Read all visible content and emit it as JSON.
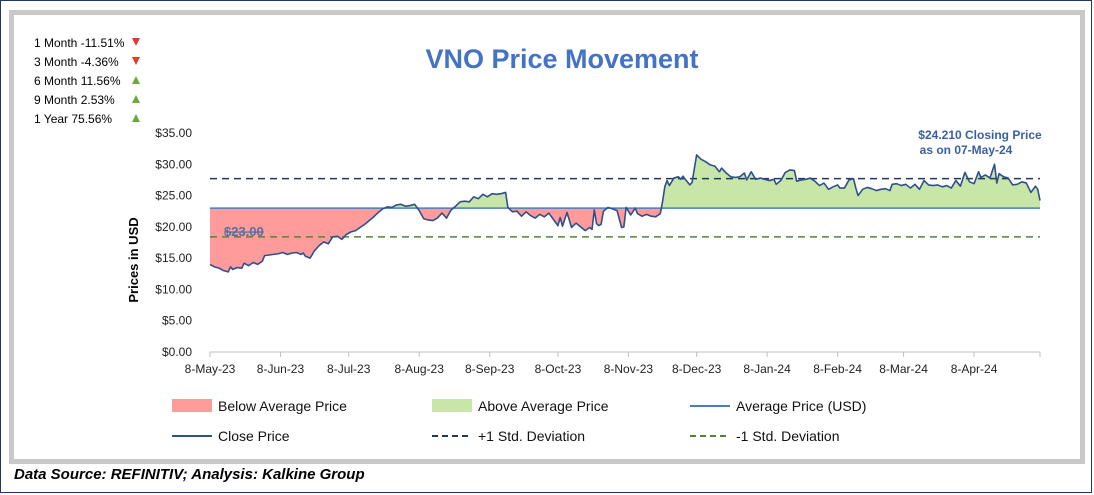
{
  "chart_data": {
    "type": "line",
    "title": "VNO Price Movement",
    "ylabel": "Prices in USD",
    "xlabel": "",
    "ylim": [
      0,
      35
    ],
    "yticks": [
      "$0.00",
      "$5.00",
      "$10.00",
      "$15.00",
      "$20.00",
      "$25.00",
      "$30.00",
      "$35.00"
    ],
    "ytick_values": [
      0,
      5,
      10,
      15,
      20,
      25,
      30,
      35
    ],
    "xticks": [
      "8-May-23",
      "8-Jun-23",
      "8-Jul-23",
      "8-Aug-23",
      "8-Sep-23",
      "8-Oct-23",
      "8-Nov-23",
      "8-Dec-23",
      "8-Jan-24",
      "8-Feb-24",
      "8-Mar-24",
      "8-Apr-24"
    ],
    "xtick_days": [
      0,
      31,
      61,
      92,
      123,
      153,
      184,
      214,
      245,
      276,
      305,
      336
    ],
    "x_range_days": [
      0,
      365
    ],
    "average_price": 23.0,
    "average_label": "$23.00",
    "plus_1_std": 27.7,
    "minus_1_std": 18.4,
    "close_annotation": [
      "$24.210 Closing Price",
      "as on 07-May-24"
    ],
    "series": [
      {
        "name": "Close Price",
        "points": [
          [
            0,
            14.0
          ],
          [
            2,
            13.6
          ],
          [
            4,
            13.4
          ],
          [
            6,
            13.0
          ],
          [
            8,
            12.8
          ],
          [
            9,
            13.6
          ],
          [
            10,
            13.2
          ],
          [
            12,
            13.5
          ],
          [
            14,
            13.4
          ],
          [
            15,
            14.2
          ],
          [
            17,
            13.8
          ],
          [
            19,
            14.3
          ],
          [
            21,
            14.0
          ],
          [
            23,
            14.5
          ],
          [
            24,
            15.4
          ],
          [
            26,
            15.5
          ],
          [
            28,
            15.6
          ],
          [
            30,
            15.7
          ],
          [
            32,
            15.9
          ],
          [
            34,
            15.6
          ],
          [
            36,
            15.8
          ],
          [
            38,
            15.9
          ],
          [
            40,
            15.6
          ],
          [
            41,
            15.8
          ],
          [
            42,
            15.3
          ],
          [
            44,
            15.0
          ],
          [
            46,
            16.2
          ],
          [
            48,
            17.0
          ],
          [
            50,
            17.6
          ],
          [
            52,
            17.3
          ],
          [
            54,
            18.4
          ],
          [
            56,
            18.5
          ],
          [
            58,
            18.0
          ],
          [
            60,
            18.8
          ],
          [
            62,
            19.2
          ],
          [
            64,
            19.4
          ],
          [
            66,
            19.9
          ],
          [
            68,
            20.4
          ],
          [
            70,
            21.0
          ],
          [
            72,
            21.6
          ],
          [
            74,
            22.3
          ],
          [
            76,
            22.9
          ],
          [
            78,
            23.2
          ],
          [
            80,
            23.1
          ],
          [
            82,
            23.5
          ],
          [
            84,
            23.6
          ],
          [
            86,
            23.3
          ],
          [
            88,
            23.4
          ],
          [
            90,
            23.6
          ],
          [
            92,
            22.6
          ],
          [
            94,
            21.3
          ],
          [
            96,
            21.1
          ],
          [
            98,
            21.0
          ],
          [
            100,
            21.4
          ],
          [
            102,
            22.2
          ],
          [
            104,
            21.4
          ],
          [
            106,
            22.7
          ],
          [
            108,
            23.3
          ],
          [
            110,
            24.0
          ],
          [
            112,
            24.1
          ],
          [
            114,
            24.0
          ],
          [
            116,
            24.8
          ],
          [
            118,
            24.5
          ],
          [
            120,
            25.2
          ],
          [
            122,
            24.8
          ],
          [
            124,
            25.3
          ],
          [
            126,
            25.2
          ],
          [
            128,
            25.3
          ],
          [
            129,
            25.4
          ],
          [
            130,
            25.5
          ],
          [
            131,
            23.1
          ],
          [
            133,
            22.4
          ],
          [
            135,
            22.5
          ],
          [
            137,
            21.7
          ],
          [
            139,
            22.4
          ],
          [
            141,
            21.8
          ],
          [
            143,
            21.4
          ],
          [
            145,
            22.0
          ],
          [
            147,
            21.6
          ],
          [
            149,
            22.2
          ],
          [
            151,
            21.2
          ],
          [
            153,
            20.2
          ],
          [
            154,
            21.5
          ],
          [
            155,
            20.1
          ],
          [
            157,
            22.3
          ],
          [
            159,
            19.9
          ],
          [
            161,
            20.6
          ],
          [
            163,
            20.0
          ],
          [
            165,
            19.4
          ],
          [
            167,
            19.9
          ],
          [
            168,
            19.6
          ],
          [
            169,
            22.7
          ],
          [
            170,
            20.5
          ],
          [
            171,
            20.2
          ],
          [
            172,
            20.4
          ],
          [
            173,
            22.5
          ],
          [
            175,
            23.1
          ],
          [
            177,
            22.9
          ],
          [
            179,
            22.6
          ],
          [
            181,
            19.9
          ],
          [
            182,
            20.0
          ],
          [
            183,
            23.1
          ],
          [
            185,
            21.9
          ],
          [
            187,
            23.0
          ],
          [
            188,
            22.1
          ],
          [
            190,
            21.7
          ],
          [
            192,
            22.0
          ],
          [
            194,
            21.7
          ],
          [
            196,
            21.6
          ],
          [
            198,
            22.1
          ],
          [
            199,
            24.0
          ],
          [
            200,
            26.4
          ],
          [
            201,
            27.4
          ],
          [
            202,
            26.6
          ],
          [
            204,
            27.8
          ],
          [
            206,
            28.0
          ],
          [
            207,
            27.6
          ],
          [
            208,
            28.1
          ],
          [
            209,
            27.6
          ],
          [
            211,
            26.7
          ],
          [
            212,
            27.1
          ],
          [
            214,
            31.5
          ],
          [
            216,
            30.8
          ],
          [
            218,
            30.4
          ],
          [
            220,
            29.9
          ],
          [
            222,
            29.7
          ],
          [
            224,
            28.8
          ],
          [
            225,
            29.4
          ],
          [
            227,
            28.6
          ],
          [
            229,
            28.0
          ],
          [
            231,
            27.9
          ],
          [
            233,
            28.0
          ],
          [
            235,
            28.6
          ],
          [
            236,
            27.5
          ],
          [
            238,
            28.8
          ],
          [
            240,
            27.6
          ],
          [
            242,
            27.8
          ],
          [
            244,
            27.6
          ],
          [
            246,
            27.4
          ],
          [
            248,
            27.6
          ],
          [
            249,
            26.8
          ],
          [
            251,
            27.4
          ],
          [
            253,
            28.7
          ],
          [
            255,
            29.1
          ],
          [
            257,
            29.0
          ],
          [
            258,
            27.3
          ],
          [
            260,
            27.5
          ],
          [
            262,
            27.6
          ],
          [
            264,
            27.8
          ],
          [
            266,
            27.3
          ],
          [
            268,
            26.6
          ],
          [
            270,
            27.0
          ],
          [
            272,
            26.0
          ],
          [
            274,
            26.4
          ],
          [
            276,
            26.7
          ],
          [
            277,
            26.2
          ],
          [
            279,
            26.2
          ],
          [
            281,
            27.5
          ],
          [
            283,
            27.7
          ],
          [
            284,
            26.2
          ],
          [
            285,
            25.0
          ],
          [
            287,
            26.0
          ],
          [
            289,
            26.3
          ],
          [
            291,
            26.1
          ],
          [
            293,
            25.8
          ],
          [
            295,
            26.0
          ],
          [
            297,
            26.1
          ],
          [
            299,
            25.8
          ],
          [
            300,
            26.8
          ],
          [
            302,
            26.9
          ],
          [
            304,
            26.6
          ],
          [
            306,
            26.8
          ],
          [
            308,
            26.2
          ],
          [
            310,
            26.8
          ],
          [
            312,
            26.0
          ],
          [
            314,
            27.4
          ],
          [
            316,
            26.7
          ],
          [
            318,
            26.6
          ],
          [
            320,
            26.7
          ],
          [
            322,
            26.4
          ],
          [
            324,
            26.6
          ],
          [
            326,
            26.2
          ],
          [
            328,
            27.4
          ],
          [
            330,
            26.5
          ],
          [
            332,
            28.7
          ],
          [
            334,
            27.2
          ],
          [
            336,
            26.9
          ],
          [
            338,
            28.8
          ],
          [
            339,
            27.9
          ],
          [
            341,
            28.3
          ],
          [
            343,
            27.8
          ],
          [
            345,
            30.0
          ],
          [
            346,
            27.0
          ],
          [
            347,
            28.5
          ],
          [
            349,
            28.0
          ],
          [
            351,
            27.8
          ],
          [
            353,
            26.7
          ],
          [
            355,
            26.8
          ],
          [
            357,
            27.2
          ],
          [
            359,
            27.0
          ],
          [
            361,
            25.5
          ],
          [
            363,
            26.5
          ],
          [
            364,
            26.0
          ],
          [
            365,
            24.2
          ]
        ]
      },
      {
        "name": "Average Price (USD)",
        "value": 23.0
      },
      {
        "name": "+1 Std. Deviation",
        "value": 27.7
      },
      {
        "name": "-1 Std. Deviation",
        "value": 18.4
      }
    ],
    "legend": [
      {
        "label": "Below Average Price",
        "kind": "area-below"
      },
      {
        "label": "Above Average Price",
        "kind": "area-above"
      },
      {
        "label": "Average Price (USD)",
        "kind": "avg-line"
      },
      {
        "label": "Close Price",
        "kind": "close-line"
      },
      {
        "label": "+1 Std. Deviation",
        "kind": "plus-line"
      },
      {
        "label": "-1 Std. Deviation",
        "kind": "minus-line"
      }
    ],
    "performance": [
      {
        "label": "1 Month -11.51%",
        "direction": "down"
      },
      {
        "label": "3 Month -4.36%",
        "direction": "down"
      },
      {
        "label": "6 Month 11.56%",
        "direction": "up"
      },
      {
        "label": "9 Month 2.53%",
        "direction": "up"
      },
      {
        "label": "1 Year 75.56%",
        "direction": "up"
      }
    ]
  },
  "colors": {
    "title": "#4472c4",
    "close_line": "#2f4f8f",
    "avg_line": "#4a7ebb",
    "plus_line": "#1f3864",
    "minus_line": "#548235",
    "below_fill": "#ff9b9b",
    "above_fill": "#c8e6a8",
    "arrow_down": "#e03c2e",
    "arrow_up": "#6aaa3a",
    "annotation": "#3a5ea8",
    "avg_label": "#5a6fa0"
  },
  "footer": {
    "source": "Data Source: REFINITIV; Analysis: Kalkine Group"
  }
}
